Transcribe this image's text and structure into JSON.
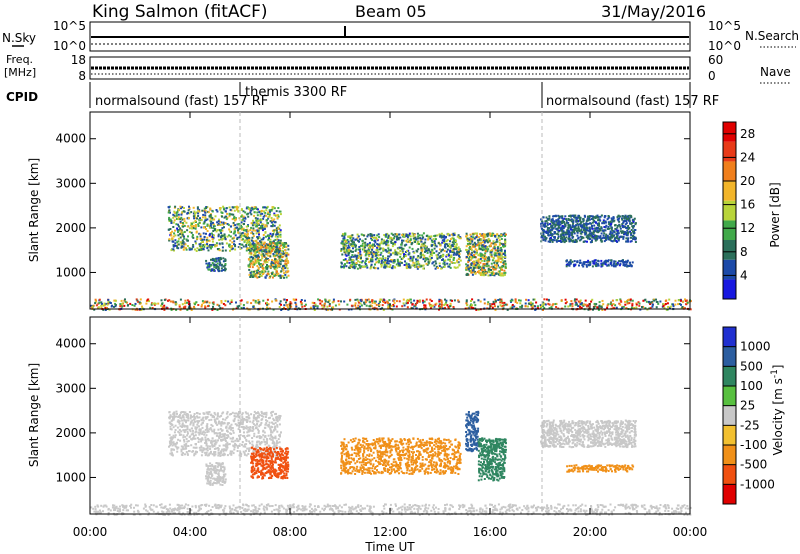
{
  "header": {
    "station": "King Salmon (fitACF)",
    "beam": "Beam 05",
    "date": "31/May/2016"
  },
  "strips": {
    "nsky_label": "N.Sky",
    "nsky_ticks": [
      "10^5",
      "10^0"
    ],
    "nsearch_label": "N.Search",
    "freq_label_line1": "Freq.",
    "freq_label_line2": "[MHz]",
    "freq_ticks": [
      "18",
      "8"
    ],
    "nave_label": "Nave",
    "nave_ticks": [
      "60",
      "0"
    ],
    "cpid_label": "CPID",
    "cpid_segments": [
      {
        "label": "normalsound (fast) 157 RF",
        "start_hour": 0.0
      },
      {
        "label": "themis 3300 RF",
        "start_hour": 6.0
      },
      {
        "label": "normalsound (fast) 157 RF",
        "start_hour": 18.0
      }
    ]
  },
  "colors": {
    "power_scale": [
      "#1818e0",
      "#1c4aa8",
      "#2b6f5a",
      "#41a94a",
      "#b8d43a",
      "#f2b52a",
      "#f07f1c",
      "#e83a18",
      "#e00000"
    ],
    "velocity_scale": [
      "#2030d0",
      "#2c5ea0",
      "#2f8660",
      "#58c040",
      "#c8c8c8",
      "#f2c030",
      "#f09018",
      "#f05010",
      "#e00000"
    ]
  },
  "chart_data": [
    {
      "type": "heatmap",
      "panel": "power",
      "ylabel": "Slant Range [km]",
      "xlabel": "Time UT",
      "x_ticks": [
        "00:00",
        "04:00",
        "08:00",
        "12:00",
        "16:00",
        "20:00",
        "00:00"
      ],
      "x_range_hours": [
        0,
        24
      ],
      "y_ticks": [
        1000,
        2000,
        3000,
        4000
      ],
      "ylim": [
        180,
        4600
      ],
      "colorbar": {
        "label": "Power [dB]",
        "ticks": [
          4,
          8,
          12,
          16,
          20,
          24,
          28
        ],
        "range": [
          0,
          30
        ]
      },
      "echo_regions": [
        {
          "t0": 3.1,
          "t1": 7.6,
          "r0": 1500,
          "r1": 2500,
          "value_range": [
            3,
            20
          ]
        },
        {
          "t0": 4.6,
          "t1": 5.4,
          "r0": 1050,
          "r1": 1350,
          "value_range": [
            3,
            12
          ]
        },
        {
          "t0": 6.3,
          "t1": 7.9,
          "r0": 900,
          "r1": 1700,
          "value_range": [
            5,
            22
          ]
        },
        {
          "t0": 10.0,
          "t1": 14.8,
          "r0": 1100,
          "r1": 1900,
          "value_range": [
            3,
            18
          ]
        },
        {
          "t0": 15.0,
          "t1": 16.6,
          "r0": 950,
          "r1": 1900,
          "value_range": [
            4,
            22
          ]
        },
        {
          "t0": 18.0,
          "t1": 21.8,
          "r0": 1700,
          "r1": 2300,
          "value_range": [
            3,
            10
          ]
        },
        {
          "t0": 19.0,
          "t1": 21.7,
          "r0": 1150,
          "r1": 1300,
          "value_range": [
            3,
            8
          ]
        },
        {
          "t0": 0.0,
          "t1": 24.0,
          "r0": 180,
          "r1": 420,
          "value_range": [
            3,
            30
          ]
        }
      ]
    },
    {
      "type": "heatmap",
      "panel": "velocity",
      "ylabel": "Slant Range [km]",
      "xlabel": "Time UT",
      "x_ticks": [
        "00:00",
        "04:00",
        "08:00",
        "12:00",
        "16:00",
        "20:00",
        "00:00"
      ],
      "x_range_hours": [
        0,
        24
      ],
      "y_ticks": [
        1000,
        2000,
        3000,
        4000
      ],
      "ylim": [
        180,
        4600
      ],
      "colorbar": {
        "label": "Velocity [m s^-1]",
        "ticks": [
          1000,
          500,
          100,
          25,
          -25,
          -100,
          -500,
          -1000
        ]
      },
      "echo_regions": [
        {
          "t0": 3.1,
          "t1": 7.6,
          "r0": 1500,
          "r1": 2500,
          "value_range": [
            -25,
            25
          ]
        },
        {
          "t0": 4.6,
          "t1": 5.4,
          "r0": 850,
          "r1": 1350,
          "value_range": [
            -25,
            25
          ]
        },
        {
          "t0": 6.4,
          "t1": 7.9,
          "r0": 1000,
          "r1": 1700,
          "value_range": [
            -1000,
            -500
          ]
        },
        {
          "t0": 10.0,
          "t1": 14.8,
          "r0": 1100,
          "r1": 1900,
          "value_range": [
            -500,
            -100
          ]
        },
        {
          "t0": 15.0,
          "t1": 15.5,
          "r0": 1600,
          "r1": 2500,
          "value_range": [
            500,
            1000
          ]
        },
        {
          "t0": 15.5,
          "t1": 16.6,
          "r0": 950,
          "r1": 1900,
          "value_range": [
            100,
            500
          ]
        },
        {
          "t0": 18.0,
          "t1": 21.8,
          "r0": 1700,
          "r1": 2300,
          "value_range": [
            -25,
            25
          ]
        },
        {
          "t0": 19.0,
          "t1": 21.7,
          "r0": 1150,
          "r1": 1300,
          "value_range": [
            -500,
            -100
          ]
        },
        {
          "t0": 0.0,
          "t1": 24.0,
          "r0": 180,
          "r1": 420,
          "value_range": [
            -25,
            25
          ]
        }
      ]
    }
  ]
}
